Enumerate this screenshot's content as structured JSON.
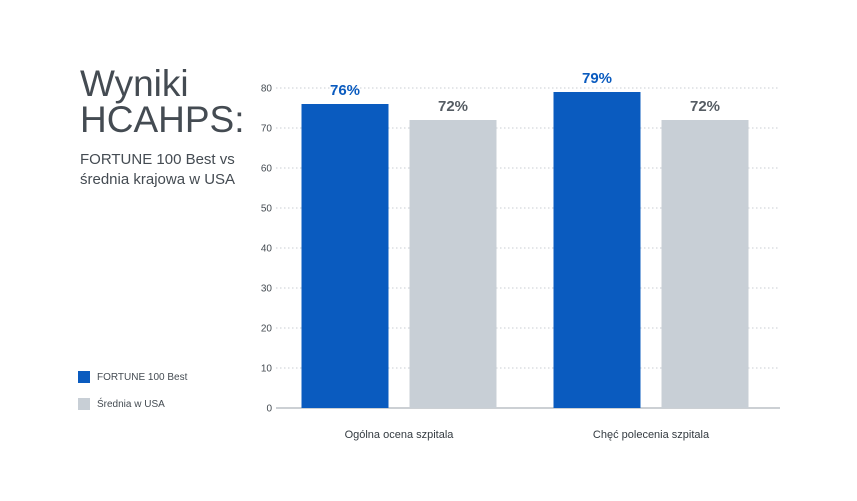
{
  "heading": {
    "title": "Wyniki HCAHPS:",
    "subtitle": "FORTUNE 100 Best vs średnia krajowa w USA"
  },
  "legend": {
    "items": [
      {
        "label": "FORTUNE 100 Best",
        "color": "#0a5bbf"
      },
      {
        "label": "Średnia w USA",
        "color": "#c8cfd6"
      }
    ]
  },
  "chart_data": {
    "type": "bar",
    "title": "Wyniki HCAHPS:",
    "subtitle": "FORTUNE 100 Best vs średnia krajowa w USA",
    "categories": [
      "Ogólna ocena szpitala",
      "Chęć polecenia szpitala"
    ],
    "series": [
      {
        "name": "FORTUNE 100 Best",
        "values": [
          76,
          79
        ],
        "labels": [
          "76%",
          "79%"
        ],
        "color": "#0a5bbf",
        "label_color": "#0a5bbf"
      },
      {
        "name": "Średnia w USA",
        "values": [
          72,
          72
        ],
        "labels": [
          "72%",
          "72%"
        ],
        "color": "#c8cfd6",
        "label_color": "#555c63"
      }
    ],
    "ylim": [
      0,
      80
    ],
    "yticks": [
      0,
      10,
      20,
      30,
      40,
      50,
      60,
      70,
      80
    ],
    "xlabel": "",
    "ylabel": "",
    "grid": true,
    "legend_position": "bottom-left"
  }
}
